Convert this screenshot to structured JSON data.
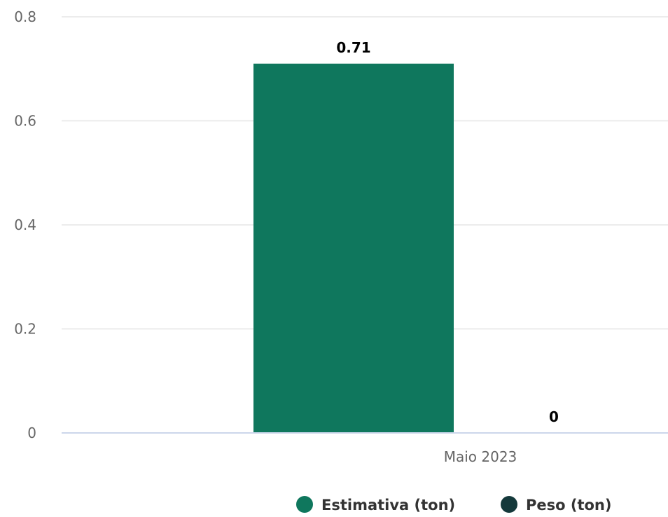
{
  "chart_data": {
    "type": "bar",
    "categories": [
      "Maio 2023"
    ],
    "series": [
      {
        "name": "Estimativa (ton)",
        "values": [
          0.71
        ],
        "color": "#0f775d"
      },
      {
        "name": "Peso (ton)",
        "values": [
          0
        ],
        "color": "#14393b"
      }
    ],
    "ylim": [
      0,
      0.8
    ],
    "yticks": [
      "0",
      "0.2",
      "0.4",
      "0.6",
      "0.8"
    ],
    "ytick_values": [
      0,
      0.2,
      0.4,
      0.6,
      0.8
    ],
    "data_labels": [
      "0.71",
      "0"
    ],
    "grid": true,
    "legend": "bottom-right"
  }
}
